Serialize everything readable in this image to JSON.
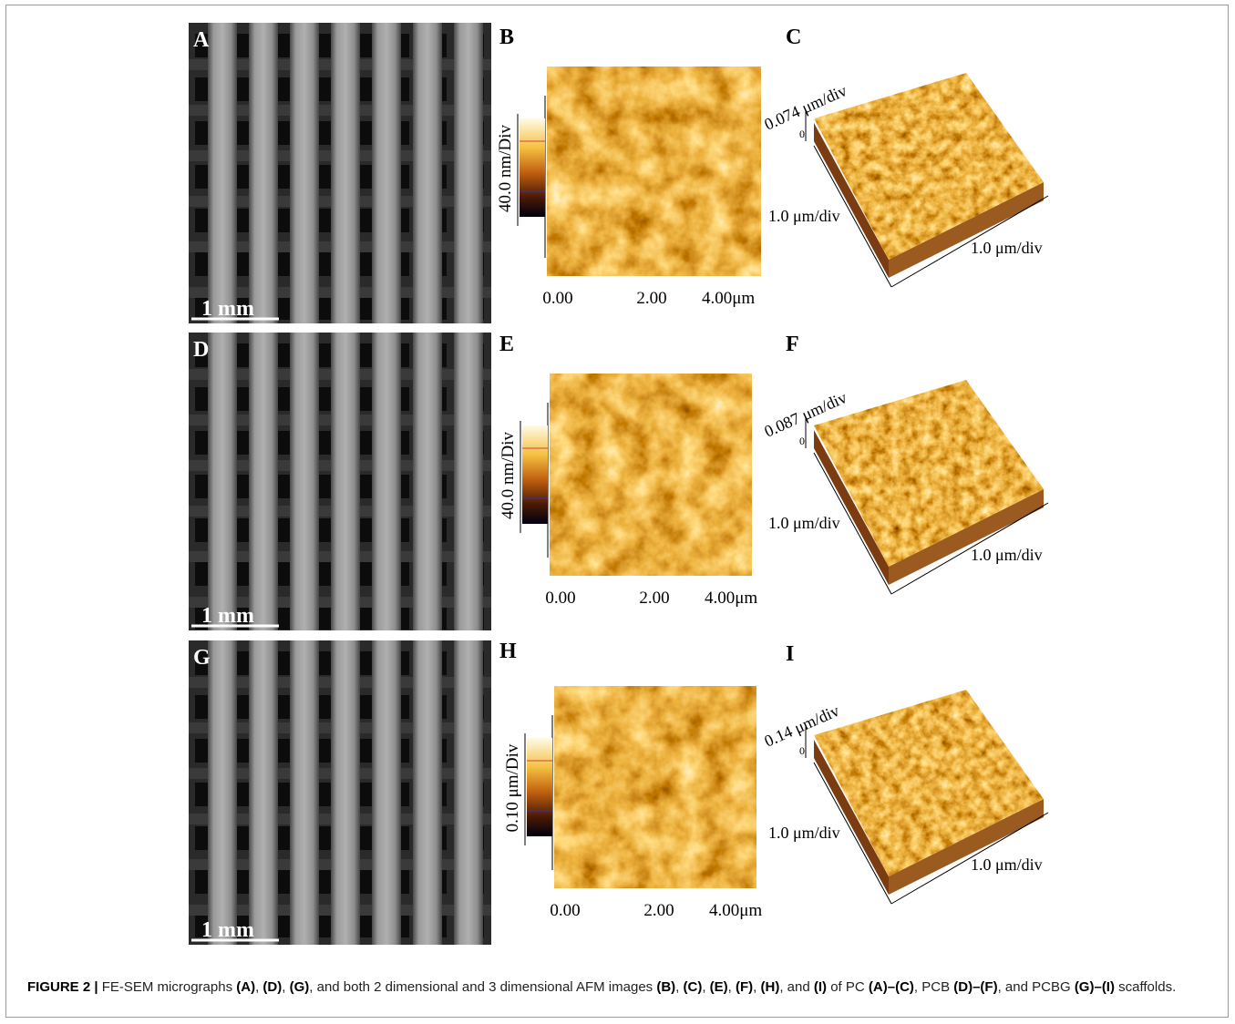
{
  "figure": {
    "rows": [
      {
        "sem": {
          "label": "A",
          "scale_bar": "1 mm"
        },
        "afm2d": {
          "label": "B",
          "colorbar_label": "40.0 nm/Div",
          "x_ticks": [
            "0.00",
            "2.00",
            "4.00μm"
          ]
        },
        "afm3d": {
          "label": "C",
          "z_scale": "0.074 μm/div",
          "z_zero": "0",
          "y_scale": "1.0 μm/div",
          "x_scale": "1.0 μm/div"
        }
      },
      {
        "sem": {
          "label": "D",
          "scale_bar": "1 mm"
        },
        "afm2d": {
          "label": "E",
          "colorbar_label": "40.0 nm/Div",
          "x_ticks": [
            "0.00",
            "2.00",
            "4.00μm"
          ]
        },
        "afm3d": {
          "label": "F",
          "z_scale": "0.087 μm/div",
          "z_zero": "0",
          "y_scale": "1.0 μm/div",
          "x_scale": "1.0 μm/div"
        }
      },
      {
        "sem": {
          "label": "G",
          "scale_bar": "1 mm"
        },
        "afm2d": {
          "label": "H",
          "colorbar_label": "0.10 μm/Div",
          "x_ticks": [
            "0.00",
            "2.00",
            "4.00μm"
          ]
        },
        "afm3d": {
          "label": "I",
          "z_scale": "0.14 μm/div",
          "z_zero": "0",
          "y_scale": "1.0 μm/div",
          "x_scale": "1.0 μm/div"
        }
      }
    ]
  },
  "caption": {
    "segments": [
      {
        "text": "FIGURE 2 |",
        "bold": true
      },
      {
        "text": " FE-SEM micrographs ",
        "bold": false
      },
      {
        "text": "(A)",
        "bold": true
      },
      {
        "text": ", ",
        "bold": false
      },
      {
        "text": "(D)",
        "bold": true
      },
      {
        "text": ", ",
        "bold": false
      },
      {
        "text": "(G)",
        "bold": true
      },
      {
        "text": ", and both 2 dimensional and 3 dimensional AFM images ",
        "bold": false
      },
      {
        "text": "(B)",
        "bold": true
      },
      {
        "text": ", ",
        "bold": false
      },
      {
        "text": "(C)",
        "bold": true
      },
      {
        "text": ", ",
        "bold": false
      },
      {
        "text": "(E)",
        "bold": true
      },
      {
        "text": ", ",
        "bold": false
      },
      {
        "text": "(F)",
        "bold": true
      },
      {
        "text": ", ",
        "bold": false
      },
      {
        "text": "(H)",
        "bold": true
      },
      {
        "text": ", and ",
        "bold": false
      },
      {
        "text": "(I)",
        "bold": true
      },
      {
        "text": " of PC ",
        "bold": false
      },
      {
        "text": "(A)–(C)",
        "bold": true
      },
      {
        "text": ", PCB ",
        "bold": false
      },
      {
        "text": "(D)–(F)",
        "bold": true
      },
      {
        "text": ", and PCBG ",
        "bold": false
      },
      {
        "text": "(G)–(I)",
        "bold": true
      },
      {
        "text": " scaffolds.",
        "bold": false
      }
    ]
  }
}
